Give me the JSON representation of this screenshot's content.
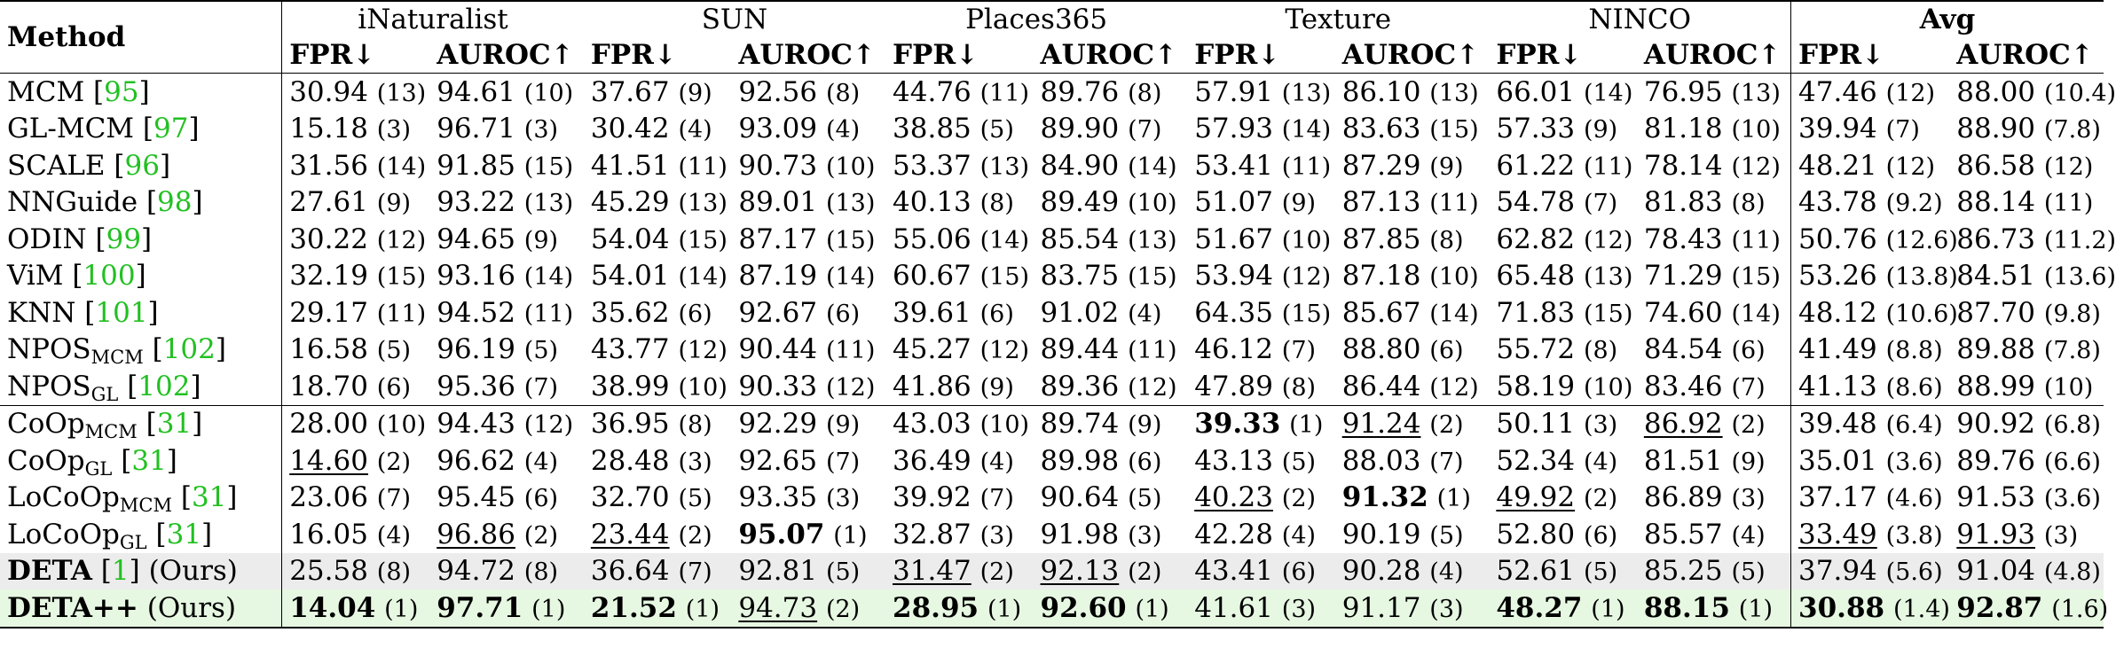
{
  "header": {
    "method_label": "Method",
    "datasets": [
      "iNaturalist",
      "SUN",
      "Places365",
      "Texture",
      "NINCO",
      "Avg"
    ],
    "fpr_label": "FPR↓",
    "auroc_label": "AUROC↑"
  },
  "rows": [
    {
      "name": "MCM",
      "sub": "",
      "ref": "95",
      "suffix": "",
      "cells": [
        {
          "v": "30.94",
          "r": "(13)"
        },
        {
          "v": "94.61",
          "r": "(10)"
        },
        {
          "v": "37.67",
          "r": "(9)"
        },
        {
          "v": "92.56",
          "r": "(8)"
        },
        {
          "v": "44.76",
          "r": "(11)"
        },
        {
          "v": "89.76",
          "r": "(8)"
        },
        {
          "v": "57.91",
          "r": "(13)"
        },
        {
          "v": "86.10",
          "r": "(13)"
        },
        {
          "v": "66.01",
          "r": "(14)"
        },
        {
          "v": "76.95",
          "r": "(13)"
        },
        {
          "v": "47.46",
          "r": "(12)"
        },
        {
          "v": "88.00",
          "r": "(10.4)"
        }
      ]
    },
    {
      "name": "GL-MCM",
      "sub": "",
      "ref": "97",
      "suffix": "",
      "cells": [
        {
          "v": "15.18",
          "r": "(3)"
        },
        {
          "v": "96.71",
          "r": "(3)"
        },
        {
          "v": "30.42",
          "r": "(4)"
        },
        {
          "v": "93.09",
          "r": "(4)"
        },
        {
          "v": "38.85",
          "r": "(5)"
        },
        {
          "v": "89.90",
          "r": "(7)"
        },
        {
          "v": "57.93",
          "r": "(14)"
        },
        {
          "v": "83.63",
          "r": "(15)"
        },
        {
          "v": "57.33",
          "r": "(9)"
        },
        {
          "v": "81.18",
          "r": "(10)"
        },
        {
          "v": "39.94",
          "r": "(7)"
        },
        {
          "v": "88.90",
          "r": "(7.8)"
        }
      ]
    },
    {
      "name": "SCALE",
      "sub": "",
      "ref": "96",
      "suffix": "",
      "cells": [
        {
          "v": "31.56",
          "r": "(14)"
        },
        {
          "v": "91.85",
          "r": "(15)"
        },
        {
          "v": "41.51",
          "r": "(11)"
        },
        {
          "v": "90.73",
          "r": "(10)"
        },
        {
          "v": "53.37",
          "r": "(13)"
        },
        {
          "v": "84.90",
          "r": "(14)"
        },
        {
          "v": "53.41",
          "r": "(11)"
        },
        {
          "v": "87.29",
          "r": "(9)"
        },
        {
          "v": "61.22",
          "r": "(11)"
        },
        {
          "v": "78.14",
          "r": "(12)"
        },
        {
          "v": "48.21",
          "r": "(12)"
        },
        {
          "v": "86.58",
          "r": "(12)"
        }
      ]
    },
    {
      "name": "NNGuide",
      "sub": "",
      "ref": "98",
      "suffix": "",
      "cells": [
        {
          "v": "27.61",
          "r": "(9)"
        },
        {
          "v": "93.22",
          "r": "(13)"
        },
        {
          "v": "45.29",
          "r": "(13)"
        },
        {
          "v": "89.01",
          "r": "(13)"
        },
        {
          "v": "40.13",
          "r": "(8)"
        },
        {
          "v": "89.49",
          "r": "(10)"
        },
        {
          "v": "51.07",
          "r": "(9)"
        },
        {
          "v": "87.13",
          "r": "(11)"
        },
        {
          "v": "54.78",
          "r": "(7)"
        },
        {
          "v": "81.83",
          "r": "(8)"
        },
        {
          "v": "43.78",
          "r": "(9.2)"
        },
        {
          "v": "88.14",
          "r": "(11)"
        }
      ]
    },
    {
      "name": "ODIN",
      "sub": "",
      "ref": "99",
      "suffix": "",
      "cells": [
        {
          "v": "30.22",
          "r": "(12)"
        },
        {
          "v": "94.65",
          "r": "(9)"
        },
        {
          "v": "54.04",
          "r": "(15)"
        },
        {
          "v": "87.17",
          "r": "(15)"
        },
        {
          "v": "55.06",
          "r": "(14)"
        },
        {
          "v": "85.54",
          "r": "(13)"
        },
        {
          "v": "51.67",
          "r": "(10)"
        },
        {
          "v": "87.85",
          "r": "(8)"
        },
        {
          "v": "62.82",
          "r": "(12)"
        },
        {
          "v": "78.43",
          "r": "(11)"
        },
        {
          "v": "50.76",
          "r": "(12.6)"
        },
        {
          "v": "86.73",
          "r": "(11.2)"
        }
      ]
    },
    {
      "name": "ViM",
      "sub": "",
      "ref": "100",
      "suffix": "",
      "cells": [
        {
          "v": "32.19",
          "r": "(15)"
        },
        {
          "v": "93.16",
          "r": "(14)"
        },
        {
          "v": "54.01",
          "r": "(14)"
        },
        {
          "v": "87.19",
          "r": "(14)"
        },
        {
          "v": "60.67",
          "r": "(15)"
        },
        {
          "v": "83.75",
          "r": "(15)"
        },
        {
          "v": "53.94",
          "r": "(12)"
        },
        {
          "v": "87.18",
          "r": "(10)"
        },
        {
          "v": "65.48",
          "r": "(13)"
        },
        {
          "v": "71.29",
          "r": "(15)"
        },
        {
          "v": "53.26",
          "r": "(13.8)"
        },
        {
          "v": "84.51",
          "r": "(13.6)"
        }
      ]
    },
    {
      "name": "KNN",
      "sub": "",
      "ref": "101",
      "suffix": "",
      "cells": [
        {
          "v": "29.17",
          "r": "(11)"
        },
        {
          "v": "94.52",
          "r": "(11)"
        },
        {
          "v": "35.62",
          "r": "(6)"
        },
        {
          "v": "92.67",
          "r": "(6)"
        },
        {
          "v": "39.61",
          "r": "(6)"
        },
        {
          "v": "91.02",
          "r": "(4)"
        },
        {
          "v": "64.35",
          "r": "(15)"
        },
        {
          "v": "85.67",
          "r": "(14)"
        },
        {
          "v": "71.83",
          "r": "(15)"
        },
        {
          "v": "74.60",
          "r": "(14)"
        },
        {
          "v": "48.12",
          "r": "(10.6)"
        },
        {
          "v": "87.70",
          "r": "(9.8)"
        }
      ]
    },
    {
      "name": "NPOS",
      "sub": "MCM",
      "ref": "102",
      "suffix": "",
      "cells": [
        {
          "v": "16.58",
          "r": "(5)"
        },
        {
          "v": "96.19",
          "r": "(5)"
        },
        {
          "v": "43.77",
          "r": "(12)"
        },
        {
          "v": "90.44",
          "r": "(11)"
        },
        {
          "v": "45.27",
          "r": "(12)"
        },
        {
          "v": "89.44",
          "r": "(11)"
        },
        {
          "v": "46.12",
          "r": "(7)"
        },
        {
          "v": "88.80",
          "r": "(6)"
        },
        {
          "v": "55.72",
          "r": "(8)"
        },
        {
          "v": "84.54",
          "r": "(6)"
        },
        {
          "v": "41.49",
          "r": "(8.8)"
        },
        {
          "v": "89.88",
          "r": "(7.8)"
        }
      ]
    },
    {
      "name": "NPOS",
      "sub": "GL",
      "ref": "102",
      "suffix": "",
      "cells": [
        {
          "v": "18.70",
          "r": "(6)"
        },
        {
          "v": "95.36",
          "r": "(7)"
        },
        {
          "v": "38.99",
          "r": "(10)"
        },
        {
          "v": "90.33",
          "r": "(12)"
        },
        {
          "v": "41.86",
          "r": "(9)"
        },
        {
          "v": "89.36",
          "r": "(12)"
        },
        {
          "v": "47.89",
          "r": "(8)"
        },
        {
          "v": "86.44",
          "r": "(12)"
        },
        {
          "v": "58.19",
          "r": "(10)"
        },
        {
          "v": "83.46",
          "r": "(7)"
        },
        {
          "v": "41.13",
          "r": "(8.6)"
        },
        {
          "v": "88.99",
          "r": "(10)"
        }
      ]
    },
    {
      "name": "CoOp",
      "sub": "MCM",
      "ref": "31",
      "suffix": "",
      "cells": [
        {
          "v": "28.00",
          "r": "(10)"
        },
        {
          "v": "94.43",
          "r": "(12)"
        },
        {
          "v": "36.95",
          "r": "(8)"
        },
        {
          "v": "92.29",
          "r": "(9)"
        },
        {
          "v": "43.03",
          "r": "(10)"
        },
        {
          "v": "89.74",
          "r": "(9)"
        },
        {
          "v": "39.33",
          "r": "(1)",
          "s": "b"
        },
        {
          "v": "91.24",
          "r": "(2)",
          "s": "u"
        },
        {
          "v": "50.11",
          "r": "(3)"
        },
        {
          "v": "86.92",
          "r": "(2)",
          "s": "u"
        },
        {
          "v": "39.48",
          "r": "(6.4)"
        },
        {
          "v": "90.92",
          "r": "(6.8)"
        }
      ]
    },
    {
      "name": "CoOp",
      "sub": "GL",
      "ref": "31",
      "suffix": "",
      "cells": [
        {
          "v": "14.60",
          "r": "(2)",
          "s": "u"
        },
        {
          "v": "96.62",
          "r": "(4)"
        },
        {
          "v": "28.48",
          "r": "(3)"
        },
        {
          "v": "92.65",
          "r": "(7)"
        },
        {
          "v": "36.49",
          "r": "(4)"
        },
        {
          "v": "89.98",
          "r": "(6)"
        },
        {
          "v": "43.13",
          "r": "(5)"
        },
        {
          "v": "88.03",
          "r": "(7)"
        },
        {
          "v": "52.34",
          "r": "(4)"
        },
        {
          "v": "81.51",
          "r": "(9)"
        },
        {
          "v": "35.01",
          "r": "(3.6)"
        },
        {
          "v": "89.76",
          "r": "(6.6)"
        }
      ]
    },
    {
      "name": "LoCoOp",
      "sub": "MCM",
      "ref": "31",
      "suffix": "",
      "cells": [
        {
          "v": "23.06",
          "r": "(7)"
        },
        {
          "v": "95.45",
          "r": "(6)"
        },
        {
          "v": "32.70",
          "r": "(5)"
        },
        {
          "v": "93.35",
          "r": "(3)"
        },
        {
          "v": "39.92",
          "r": "(7)"
        },
        {
          "v": "90.64",
          "r": "(5)"
        },
        {
          "v": "40.23",
          "r": "(2)",
          "s": "u"
        },
        {
          "v": "91.32",
          "r": "(1)",
          "s": "b"
        },
        {
          "v": "49.92",
          "r": "(2)",
          "s": "u"
        },
        {
          "v": "86.89",
          "r": "(3)"
        },
        {
          "v": "37.17",
          "r": "(4.6)"
        },
        {
          "v": "91.53",
          "r": "(3.6)"
        }
      ]
    },
    {
      "name": "LoCoOp",
      "sub": "GL",
      "ref": "31",
      "suffix": "",
      "cells": [
        {
          "v": "16.05",
          "r": "(4)"
        },
        {
          "v": "96.86",
          "r": "(2)",
          "s": "u"
        },
        {
          "v": "23.44",
          "r": "(2)",
          "s": "u"
        },
        {
          "v": "95.07",
          "r": "(1)",
          "s": "b"
        },
        {
          "v": "32.87",
          "r": "(3)"
        },
        {
          "v": "91.98",
          "r": "(3)"
        },
        {
          "v": "42.28",
          "r": "(4)"
        },
        {
          "v": "90.19",
          "r": "(5)"
        },
        {
          "v": "52.80",
          "r": "(6)"
        },
        {
          "v": "85.57",
          "r": "(4)"
        },
        {
          "v": "33.49",
          "r": "(3.8)",
          "s": "u"
        },
        {
          "v": "91.93",
          "r": "(3)",
          "s": "u"
        }
      ]
    },
    {
      "name": "DETA",
      "sub": "",
      "ref": "1",
      "suffix": " (Ours)",
      "bold_name": true,
      "cells": [
        {
          "v": "25.58",
          "r": "(8)"
        },
        {
          "v": "94.72",
          "r": "(8)"
        },
        {
          "v": "36.64",
          "r": "(7)"
        },
        {
          "v": "92.81",
          "r": "(5)"
        },
        {
          "v": "31.47",
          "r": "(2)",
          "s": "u"
        },
        {
          "v": "92.13",
          "r": "(2)",
          "s": "u"
        },
        {
          "v": "43.41",
          "r": "(6)"
        },
        {
          "v": "90.28",
          "r": "(4)"
        },
        {
          "v": "52.61",
          "r": "(5)"
        },
        {
          "v": "85.25",
          "r": "(5)"
        },
        {
          "v": "37.94",
          "r": "(5.6)"
        },
        {
          "v": "91.04",
          "r": "(4.8)"
        }
      ]
    },
    {
      "name": "DETA++",
      "sub": "",
      "ref": "",
      "suffix": " (Ours)",
      "bold_name": true,
      "cells": [
        {
          "v": "14.04",
          "r": "(1)",
          "s": "b"
        },
        {
          "v": "97.71",
          "r": "(1)",
          "s": "b"
        },
        {
          "v": "21.52",
          "r": "(1)",
          "s": "b"
        },
        {
          "v": "94.73",
          "r": "(2)",
          "s": "u"
        },
        {
          "v": "28.95",
          "r": "(1)",
          "s": "b"
        },
        {
          "v": "92.60",
          "r": "(1)",
          "s": "b"
        },
        {
          "v": "41.61",
          "r": "(3)"
        },
        {
          "v": "91.17",
          "r": "(3)"
        },
        {
          "v": "48.27",
          "r": "(1)",
          "s": "b"
        },
        {
          "v": "88.15",
          "r": "(1)",
          "s": "b"
        },
        {
          "v": "30.88",
          "r": "(1.4)",
          "s": "b"
        },
        {
          "v": "92.87",
          "r": "(1.6)",
          "s": "b"
        }
      ]
    }
  ],
  "colors": {
    "ref_link": "#22c022",
    "deta_row_bg": "#ececec",
    "detapp_row_bg": "#e6f7e2"
  }
}
